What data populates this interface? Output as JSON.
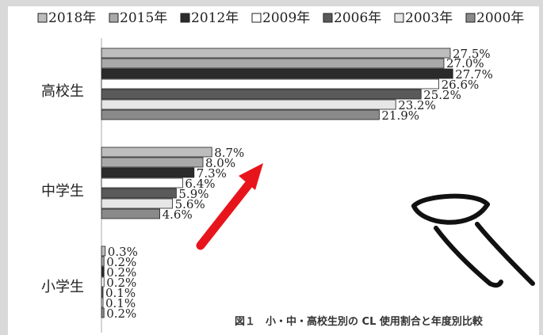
{
  "chart_data": {
    "type": "bar",
    "orientation": "horizontal",
    "title": "",
    "caption": "図１　小・中・高校生別の CL 使用割合と年度別比較",
    "legend_position": "top",
    "grid": false,
    "xlim": [
      0,
      28
    ],
    "categories": [
      "高校生",
      "中学生",
      "小学生"
    ],
    "series": [
      {
        "name": "2018年",
        "color": "#bdbdbd",
        "values": [
          27.5,
          8.7,
          0.3
        ],
        "labels": [
          "27.5%",
          "8.7%",
          "0.3%"
        ]
      },
      {
        "name": "2015年",
        "color": "#a9a9a9",
        "values": [
          27.0,
          8.0,
          0.2
        ],
        "labels": [
          "27.0%",
          "8.0%",
          "0.2%"
        ]
      },
      {
        "name": "2012年",
        "color": "#2b2b2b",
        "values": [
          27.7,
          7.3,
          0.2
        ],
        "labels": [
          "27.7%",
          "7.3%",
          "0.2%"
        ]
      },
      {
        "name": "2009年",
        "color": "#ffffff",
        "values": [
          26.6,
          6.4,
          0.2
        ],
        "labels": [
          "26.6%",
          "6.4%",
          "0.2%"
        ]
      },
      {
        "name": "2006年",
        "color": "#5a5a5a",
        "values": [
          25.2,
          5.9,
          0.1
        ],
        "labels": [
          "25.2%",
          "5.9%",
          "0.1%"
        ]
      },
      {
        "name": "2003年",
        "color": "#e6e6e6",
        "values": [
          23.2,
          5.6,
          0.1
        ],
        "labels": [
          "23.2%",
          "5.6%",
          "0.1%"
        ]
      },
      {
        "name": "2000年",
        "color": "#8a8a8a",
        "values": [
          21.9,
          4.6,
          0.2
        ],
        "labels": [
          "21.9%",
          "4.6%",
          "0.2%"
        ]
      }
    ]
  },
  "icons": {
    "arrow": "red-arrow-icon",
    "contact_lens": "contact-lens-on-finger-icon"
  },
  "colors": {
    "arrow": "#e8141b",
    "background": "#d9d9d9"
  }
}
